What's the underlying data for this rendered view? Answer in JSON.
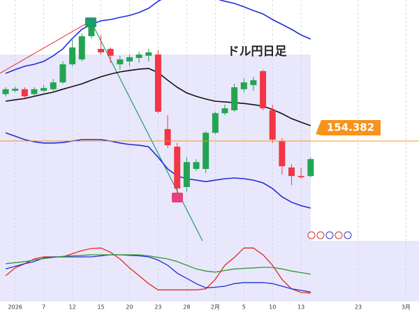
{
  "chart_data": [
    {
      "type": "candlestick",
      "title": "ドル円日足",
      "xlim": [
        -0.59,
        43.37
      ],
      "ylim": [
        150.3,
        160.15
      ],
      "xticks": [
        {
          "value": 1,
          "label": "2026"
        },
        {
          "value": 4,
          "label": "7"
        },
        {
          "value": 7,
          "label": "12"
        },
        {
          "value": 10,
          "label": "15"
        },
        {
          "value": 13,
          "label": "20"
        },
        {
          "value": 16,
          "label": "23"
        },
        {
          "value": 19,
          "label": "28"
        },
        {
          "value": 22,
          "label": "2月"
        },
        {
          "value": 25,
          "label": "5"
        },
        {
          "value": 28,
          "label": "10"
        },
        {
          "value": 31,
          "label": "13"
        },
        {
          "value": 37,
          "label": "23"
        },
        {
          "value": 42,
          "label": "3月"
        }
      ],
      "up_color": "#22a552",
      "down_color": "#f23645",
      "open": [
        156.3,
        156.44,
        156.5,
        156.3,
        156.44,
        156.5,
        156.78,
        157.52,
        157.72,
        158.67,
        158.15,
        158.15,
        157.52,
        157.64,
        157.78,
        157.87,
        157.92,
        154.87,
        154.15,
        152.5,
        153.24,
        153.24,
        154.72,
        155.52,
        155.64,
        156.5,
        156.67,
        157.24,
        155.64,
        154.38,
        153.3,
        152.95,
        152.95
      ],
      "high": [
        156.58,
        156.61,
        156.58,
        156.58,
        156.67,
        156.92,
        157.64,
        158.58,
        158.78,
        159.35,
        158.72,
        158.21,
        157.87,
        157.92,
        158.04,
        158.15,
        158.1,
        155.44,
        154.3,
        153.72,
        153.64,
        154.78,
        155.58,
        155.87,
        156.72,
        156.95,
        157.01,
        157.3,
        155.87,
        154.5,
        153.44,
        153.3,
        153.72
      ],
      "low": [
        156.21,
        156.38,
        156.15,
        156.24,
        156.38,
        156.44,
        156.72,
        157.44,
        157.64,
        158.58,
        157.92,
        157.58,
        157.3,
        157.44,
        157.58,
        157.64,
        155.52,
        154.1,
        152.01,
        152.3,
        153.15,
        153.07,
        154.67,
        155.44,
        155.58,
        156.38,
        156.44,
        155.64,
        154.3,
        153.01,
        152.58,
        152.84,
        152.9
      ],
      "close": [
        156.5,
        156.52,
        156.21,
        156.5,
        156.55,
        156.78,
        157.52,
        158.21,
        158.67,
        159.07,
        158.01,
        157.87,
        157.72,
        157.81,
        157.92,
        158.01,
        155.58,
        154.21,
        152.44,
        153.52,
        153.52,
        154.72,
        155.52,
        155.72,
        156.58,
        156.78,
        156.87,
        155.72,
        154.44,
        153.35,
        152.95,
        152.9,
        153.64
      ],
      "overlays": [
        {
          "color": "#1f2fd6",
          "values": [
            157.15,
            157.3,
            157.44,
            157.52,
            157.64,
            157.87,
            158.15,
            158.58,
            158.95,
            159.15,
            159.3,
            159.35,
            159.44,
            159.52,
            159.64,
            159.81,
            160.1,
            160.3,
            160.44,
            160.44,
            160.38,
            160.3,
            160.21,
            160.1,
            160.01,
            159.87,
            159.72,
            159.58,
            159.35,
            159.15,
            158.95,
            158.72,
            158.55
          ]
        },
        {
          "color": "#1f2fd6",
          "values": [
            154.72,
            154.58,
            154.44,
            154.35,
            154.3,
            154.3,
            154.32,
            154.38,
            154.44,
            154.44,
            154.44,
            154.38,
            154.3,
            154.24,
            154.21,
            154.15,
            153.72,
            153.24,
            152.95,
            152.84,
            152.78,
            152.72,
            152.78,
            152.84,
            152.87,
            152.84,
            152.78,
            152.67,
            152.44,
            152.1,
            151.88,
            151.74,
            151.64
          ]
        },
        {
          "color": "#111111",
          "values": [
            156.01,
            156.07,
            156.12,
            156.21,
            156.3,
            156.38,
            156.5,
            156.61,
            156.72,
            156.87,
            157.01,
            157.12,
            157.21,
            157.27,
            157.32,
            157.35,
            157.18,
            156.87,
            156.58,
            156.35,
            156.21,
            156.1,
            156.01,
            155.98,
            155.95,
            155.92,
            155.87,
            155.81,
            155.67,
            155.5,
            155.3,
            155.15,
            155.01
          ]
        }
      ],
      "price_line": 154.382,
      "price_color": "#f7931a"
    },
    {
      "type": "line",
      "xlim": [
        -0.59,
        43.37
      ],
      "ylim": [
        -9.3,
        106.7
      ],
      "series": [
        {
          "color": "#e8281e",
          "values": [
            40,
            55,
            63,
            72,
            76,
            76,
            76,
            82,
            88,
            92,
            93,
            85,
            72,
            55,
            40,
            25,
            13,
            13,
            13,
            13,
            13,
            15,
            33,
            60,
            75,
            93,
            93,
            80,
            60,
            33,
            15,
            8,
            7
          ]
        },
        {
          "color": "#1f2fd6",
          "values": [
            53,
            58,
            63,
            67,
            74,
            76,
            76,
            76,
            76,
            76,
            78,
            80,
            80,
            79,
            78,
            76,
            70,
            60,
            45,
            35,
            25,
            17,
            18,
            20,
            25,
            27,
            27,
            27,
            25,
            20,
            15,
            12,
            9
          ]
        },
        {
          "color": "#2e9a2e",
          "values": [
            63,
            65,
            67,
            70,
            73,
            75,
            77,
            78,
            79,
            80,
            80,
            80,
            80,
            80,
            80,
            78,
            75,
            72,
            67,
            60,
            53,
            49,
            47,
            50,
            53,
            54,
            55,
            56,
            56,
            53,
            49,
            46,
            43
          ]
        }
      ]
    }
  ]
}
